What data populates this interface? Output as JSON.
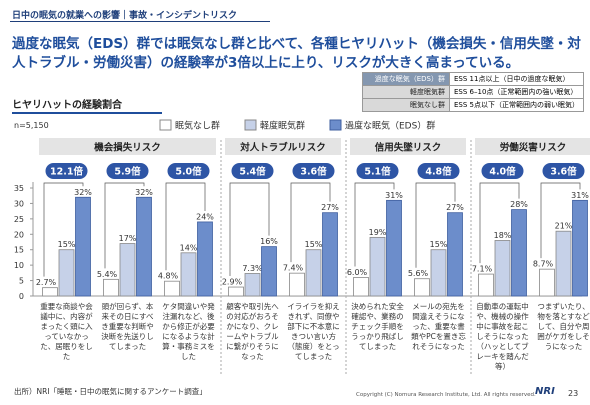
{
  "header": {
    "breadcrumb": "日中の眠気の就業への影響｜事故・インシデントリスク",
    "title": "過度な眠気（EDS）群では眠気なし群と比べて、各種ヒヤリハット（機会損失・信用失墜・対人トラブル・労働災害）の経験率が3倍以上に上り、リスクが大きく高まっている。"
  },
  "definitions": [
    {
      "group": "過度な眠気（EDS）群",
      "desc": "ESS 11点以上（日中の過度な眠気）"
    },
    {
      "group": "軽度眠気群",
      "desc": "ESS 6–10点（正常範囲内の強い眠気）"
    },
    {
      "group": "眠気なし群",
      "desc": "ESS 5点以下（正常範囲内の弱い眠気）"
    }
  ],
  "chart_data": {
    "type": "bar",
    "title": "ヒヤリハットの経験割合",
    "note": "n=5,150",
    "ylim": [
      0,
      35
    ],
    "yticks": [
      0,
      5,
      10,
      15,
      20,
      25,
      30,
      35
    ],
    "series": [
      {
        "name": "眠気なし群",
        "color": "#ffffff"
      },
      {
        "name": "軽度眠気群",
        "color": "#c6d1e8"
      },
      {
        "name": "過度な眠気（EDS）群",
        "color": "#6c8dcb"
      }
    ],
    "groups": [
      {
        "name": "機会損失リスク",
        "items": [
          {
            "label": "重要な商談や会議中に、内容がまったく頭に入っていなかった、居眠りをした",
            "ratio": "12.1倍",
            "values": [
              2.7,
              15,
              32
            ],
            "value_labels": [
              "2.7%",
              "15%",
              "32%"
            ]
          },
          {
            "label": "頭が回らず、本来その日にすべき重要な判断や決断を先送りしてしまった",
            "ratio": "5.9倍",
            "values": [
              5.4,
              17,
              32
            ],
            "value_labels": [
              "5.4%",
              "17%",
              "32%"
            ]
          },
          {
            "label": "ケタ間違いや発注漏れなど、後から修正が必要になるような計算・事務ミスをした",
            "ratio": "5.0倍",
            "values": [
              4.8,
              14,
              24
            ],
            "value_labels": [
              "4.8%",
              "14%",
              "24%"
            ]
          }
        ]
      },
      {
        "name": "対人トラブルリスク",
        "items": [
          {
            "label": "顧客や取引先への対応がおろそかになり、クレームやトラブルに繋がりそうになった",
            "ratio": "5.4倍",
            "values": [
              2.9,
              7.3,
              16
            ],
            "value_labels": [
              "2.9%",
              "7.3%",
              "16%"
            ]
          },
          {
            "label": "イライラを抑えきれず、同僚や部下に不本意にきつい言い方（態度）をとってしまった",
            "ratio": "3.6倍",
            "values": [
              7.4,
              15,
              27
            ],
            "value_labels": [
              "7.4%",
              "15%",
              "27%"
            ]
          }
        ]
      },
      {
        "name": "信用失墜リスク",
        "items": [
          {
            "label": "決められた安全確認や、業務のチェック手順をうっかり飛ばしてしまった",
            "ratio": "5.1倍",
            "values": [
              6.0,
              19,
              31
            ],
            "value_labels": [
              "6.0%",
              "19%",
              "31%"
            ]
          },
          {
            "label": "メールの宛先を間違えそうになった、重要な書類やPCを置き忘れそうになった",
            "ratio": "4.8倍",
            "values": [
              5.6,
              15,
              27
            ],
            "value_labels": [
              "5.6%",
              "15%",
              "27%"
            ]
          }
        ]
      },
      {
        "name": "労働災害リスク",
        "items": [
          {
            "label": "自動車の運転中や、機械の操作中に事故を起こしそうになった（ハッとしてブレーキを踏んだ等）",
            "ratio": "4.0倍",
            "values": [
              7.1,
              18,
              28
            ],
            "value_labels": [
              "7.1%",
              "18%",
              "28%"
            ]
          },
          {
            "label": "つまずいたり、物を落とすなどして、自分や周囲がケガをしそうになった",
            "ratio": "3.6倍",
            "values": [
              8.7,
              21,
              31
            ],
            "value_labels": [
              "8.7%",
              "21%",
              "31%"
            ]
          }
        ]
      }
    ]
  },
  "footer": {
    "source": "出所）NRI「睡眠・日中の眠気に関するアンケート調査」",
    "copyright": "Copyright (C)  Nomura Research Institute, Ltd. All rights reserved.",
    "logo": "NRI",
    "page": "23"
  }
}
